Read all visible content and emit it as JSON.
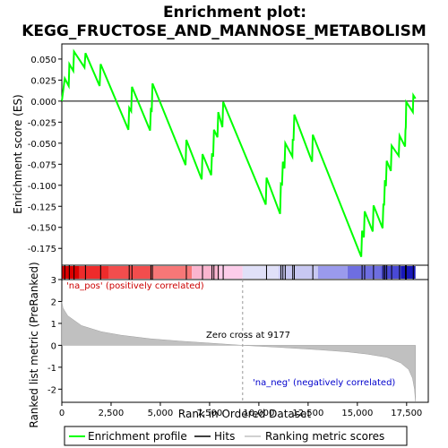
{
  "chart_data": {
    "type": "line",
    "title_line1": "Enrichment plot:",
    "title_line2": "KEGG_FRUCTOSE_AND_MANNOSE_METABOLISM",
    "top_panel": {
      "ylabel": "Enrichment score (ES)",
      "ylim": [
        -0.195,
        0.068
      ],
      "yticks": [
        0.05,
        0.025,
        0.0,
        -0.025,
        -0.05,
        -0.075,
        -0.1,
        -0.125,
        -0.15,
        -0.175
      ],
      "ytick_labels": [
        "0.050",
        "0.025",
        "0.000",
        "-0.025",
        "-0.050",
        "-0.075",
        "-0.100",
        "-0.125",
        "-0.150",
        "-0.175"
      ],
      "series_name": "Enrichment profile",
      "series_color": "#00ff00",
      "points": [
        [
          0,
          0
        ],
        [
          150,
          0.027
        ],
        [
          350,
          0.018
        ],
        [
          380,
          0.044
        ],
        [
          580,
          0.036
        ],
        [
          620,
          0.059
        ],
        [
          1150,
          0.04
        ],
        [
          1200,
          0.057
        ],
        [
          1920,
          0.018
        ],
        [
          1970,
          0.044
        ],
        [
          3380,
          -0.034
        ],
        [
          3420,
          -0.008
        ],
        [
          3520,
          -0.012
        ],
        [
          3560,
          0.017
        ],
        [
          4480,
          -0.035
        ],
        [
          4520,
          -0.008
        ],
        [
          4560,
          -0.013
        ],
        [
          4600,
          0.021
        ],
        [
          6280,
          -0.076
        ],
        [
          6320,
          -0.046
        ],
        [
          7100,
          -0.093
        ],
        [
          7140,
          -0.063
        ],
        [
          7580,
          -0.088
        ],
        [
          7620,
          -0.062
        ],
        [
          7680,
          -0.066
        ],
        [
          7720,
          -0.034
        ],
        [
          7900,
          -0.043
        ],
        [
          7940,
          -0.013
        ],
        [
          8150,
          -0.031
        ],
        [
          8190,
          -0.001
        ],
        [
          10350,
          -0.123
        ],
        [
          10390,
          -0.091
        ],
        [
          11080,
          -0.134
        ],
        [
          11120,
          -0.098
        ],
        [
          11180,
          -0.099
        ],
        [
          11220,
          -0.072
        ],
        [
          11300,
          -0.08
        ],
        [
          11340,
          -0.05
        ],
        [
          11700,
          -0.066
        ],
        [
          11720,
          -0.046
        ],
        [
          11760,
          -0.046
        ],
        [
          11800,
          -0.016
        ],
        [
          12700,
          -0.072
        ],
        [
          12740,
          -0.04
        ],
        [
          15200,
          -0.185
        ],
        [
          15240,
          -0.154
        ],
        [
          15330,
          -0.162
        ],
        [
          15370,
          -0.131
        ],
        [
          15780,
          -0.155
        ],
        [
          15820,
          -0.124
        ],
        [
          16280,
          -0.151
        ],
        [
          16320,
          -0.122
        ],
        [
          16360,
          -0.124
        ],
        [
          16400,
          -0.094
        ],
        [
          16450,
          -0.101
        ],
        [
          16490,
          -0.071
        ],
        [
          16700,
          -0.083
        ],
        [
          16740,
          -0.053
        ],
        [
          17100,
          -0.065
        ],
        [
          17140,
          -0.041
        ],
        [
          17420,
          -0.054
        ],
        [
          17440,
          -0.035
        ],
        [
          17460,
          -0.031
        ],
        [
          17480,
          -0.001
        ],
        [
          17820,
          -0.013
        ],
        [
          17840,
          0.007
        ],
        [
          17950,
          0.003
        ]
      ]
    },
    "hits": [
      0,
      150,
      380,
      620,
      1200,
      1970,
      3420,
      3560,
      4520,
      4600,
      6320,
      7140,
      7620,
      7720,
      7940,
      8190,
      10390,
      11120,
      11220,
      11340,
      11720,
      11800,
      12740,
      15240,
      15370,
      15820,
      16320,
      16400,
      16490,
      16740,
      17140,
      17440,
      17480,
      17840
    ],
    "bar_segments": [
      {
        "from": 0,
        "to": 900,
        "color": "#dd0000"
      },
      {
        "from": 900,
        "to": 2400,
        "color": "#ee2b2b"
      },
      {
        "from": 2400,
        "to": 4500,
        "color": "#f24d4d"
      },
      {
        "from": 4500,
        "to": 6600,
        "color": "#f77777"
      },
      {
        "from": 6600,
        "to": 8000,
        "color": "#fbb5cf"
      },
      {
        "from": 8000,
        "to": 9177,
        "color": "#fccdea"
      },
      {
        "from": 9177,
        "to": 11000,
        "color": "#e0e0f8"
      },
      {
        "from": 11000,
        "to": 13000,
        "color": "#c8c8f2"
      },
      {
        "from": 13000,
        "to": 14500,
        "color": "#9a9aec"
      },
      {
        "from": 14500,
        "to": 16200,
        "color": "#6e6ee0"
      },
      {
        "from": 16200,
        "to": 17200,
        "color": "#4949d6"
      },
      {
        "from": 17200,
        "to": 17950,
        "color": "#1818b8"
      }
    ],
    "bottom_panel": {
      "ylabel": "Ranked list metric (PreRanked)",
      "ylim": [
        -2.6,
        3.0
      ],
      "yticks": [
        3,
        2,
        1,
        0,
        -1,
        -2
      ],
      "metric_points": [
        [
          0,
          2.0
        ],
        [
          60,
          1.7
        ],
        [
          300,
          1.35
        ],
        [
          1000,
          0.9
        ],
        [
          2000,
          0.62
        ],
        [
          3000,
          0.46
        ],
        [
          4500,
          0.3
        ],
        [
          6000,
          0.19
        ],
        [
          7500,
          0.1
        ],
        [
          9177,
          0.0
        ],
        [
          11000,
          -0.09
        ],
        [
          13000,
          -0.2
        ],
        [
          14500,
          -0.3
        ],
        [
          15500,
          -0.4
        ],
        [
          16500,
          -0.55
        ],
        [
          17200,
          -0.8
        ],
        [
          17600,
          -1.1
        ],
        [
          17800,
          -1.5
        ],
        [
          17900,
          -2.0
        ],
        [
          17950,
          -2.55
        ]
      ],
      "fill_color": "#c0c0c0",
      "pos_label": "'na_pos' (positively correlated)",
      "neg_label": "'na_neg' (negatively correlated)",
      "zero_cross_label": "Zero cross at 9177",
      "zero_cross_x": 9177
    },
    "x_axis": {
      "xlabel": "Rank in Ordered Dataset",
      "xlim": [
        0,
        18600
      ],
      "xticks": [
        0,
        2500,
        5000,
        7500,
        10000,
        12500,
        15000,
        17500
      ],
      "xtick_labels": [
        "0",
        "2,500",
        "5,000",
        "7,500",
        "10,000",
        "12,500",
        "15,000",
        "17,500"
      ]
    },
    "legend": {
      "items": [
        {
          "label": "Enrichment profile",
          "color": "#00ff00"
        },
        {
          "label": "Hits",
          "color": "#000000"
        },
        {
          "label": "Ranking metric scores",
          "color": "#c0c0c0"
        }
      ]
    }
  }
}
